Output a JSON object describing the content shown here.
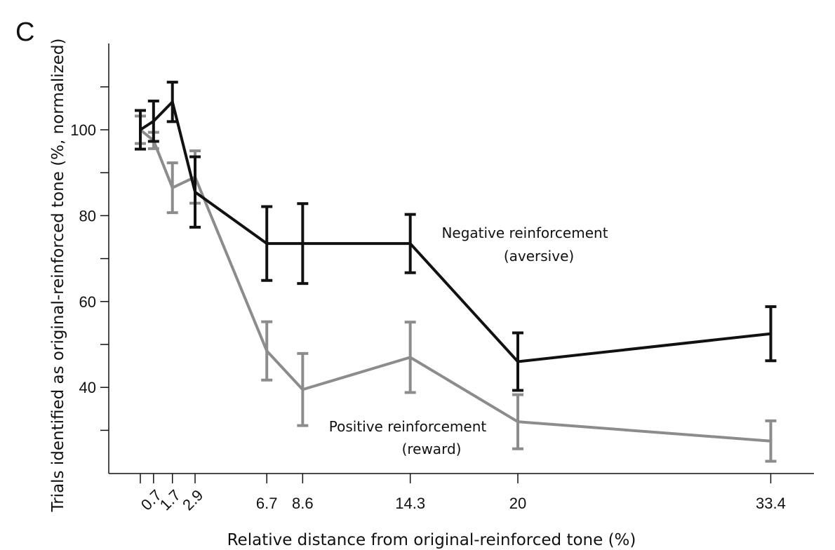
{
  "panel_label": "C",
  "chart_data": {
    "type": "line",
    "xlabel": "Relative distance from original-reinforced tone (%)",
    "ylabel": "Trials identified as original-reinforced tone (%, normalized)",
    "x_ticks": [
      0.7,
      1.7,
      2.9,
      6.7,
      8.6,
      14.3,
      20,
      33.4
    ],
    "x_tick_labels": [
      "0.7",
      "1.7",
      "2.9",
      "6.7",
      "8.6",
      "14.3",
      "20",
      "33.4"
    ],
    "y_ticks": [
      40,
      60,
      80,
      100
    ],
    "y_minor_ticks": [
      30,
      50,
      70,
      90,
      110
    ],
    "ylim": [
      20,
      120
    ],
    "grid": false,
    "series": [
      {
        "name": "Negative reinforcement (aversive)",
        "color": "#111111",
        "x": [
          0,
          0.7,
          1.7,
          2.9,
          6.7,
          8.6,
          14.3,
          20,
          33.4
        ],
        "y": [
          100,
          102,
          106.5,
          85.5,
          73.5,
          73.5,
          73.5,
          46,
          52.5
        ],
        "err": [
          4.5,
          4.7,
          4.6,
          8.2,
          8.6,
          9.3,
          6.8,
          6.7,
          6.3
        ]
      },
      {
        "name": "Positive reinforcement (reward)",
        "color": "#8c8c8c",
        "x": [
          0,
          0.7,
          1.7,
          2.9,
          6.7,
          8.6,
          14.3,
          20,
          33.4
        ],
        "y": [
          100,
          97.5,
          86.5,
          89,
          48.5,
          39.5,
          47,
          32,
          27.5
        ],
        "err": [
          3.2,
          1.9,
          5.8,
          6.1,
          6.8,
          8.4,
          8.2,
          6.3,
          4.7
        ]
      }
    ],
    "annotations": [
      {
        "series": 0,
        "lines": [
          "Negative reinforcement",
          "(aversive)"
        ]
      },
      {
        "series": 1,
        "lines": [
          "Positive reinforcement",
          "(reward)"
        ]
      }
    ]
  }
}
